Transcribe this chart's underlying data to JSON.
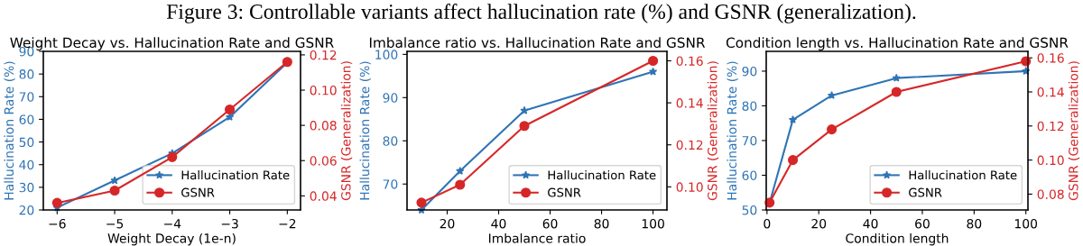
{
  "chart_data": [
    {
      "type": "line",
      "title": "Weight Decay vs. Hallucination Rate and GSNR",
      "annotations": [
        "Figure 3: Controllable variants affect hallucination rate (%) and GSNR (generalization)."
      ],
      "xlabel": "Weight Decay (1e-n)",
      "ylabel": "Hallucination Rate (%)",
      "y2label": "GSNR (Generalization)",
      "x": [
        -6,
        -5,
        -4,
        -3,
        -2
      ],
      "xlim": [
        -6.24,
        -1.77
      ],
      "xticks": [
        {
          "value": -6,
          "label": "−6"
        },
        {
          "value": -5,
          "label": "−5"
        },
        {
          "value": -4,
          "label": "−4"
        },
        {
          "value": -3,
          "label": "−3"
        },
        {
          "value": -2,
          "label": "−2"
        }
      ],
      "ylim": [
        20,
        90
      ],
      "yticks": [
        20,
        30,
        40,
        50,
        60,
        70,
        80,
        90
      ],
      "y2lim": [
        0.032,
        0.122
      ],
      "y2ticks": [
        {
          "value": 0.04,
          "label": "0.04"
        },
        {
          "value": 0.06,
          "label": "0.06"
        },
        {
          "value": 0.08,
          "label": "0.08"
        },
        {
          "value": 0.1,
          "label": "0.10"
        },
        {
          "value": 0.12,
          "label": "0.12"
        }
      ],
      "legend": "lower right",
      "grid": false,
      "series": [
        {
          "name": "Hallucination Rate",
          "color": "#2f74b5",
          "marker": "star",
          "values": [
            21,
            33,
            45,
            61,
            85
          ]
        },
        {
          "name": "GSNR",
          "color": "#d62728",
          "marker": "circle",
          "axis": "y2",
          "values": [
            0.036,
            0.043,
            0.062,
            0.089,
            0.116
          ]
        }
      ]
    },
    {
      "type": "line",
      "title": "Imbalance ratio vs. Hallucination Rate and GSNR",
      "xlabel": "Imbalance ratio",
      "ylabel": "Hallucination Rate (%)",
      "y2label": "GSNR (Generalization)",
      "x": [
        10,
        25,
        50,
        100
      ],
      "xlim": [
        4.4,
        105.4
      ],
      "xticks": [
        20,
        40,
        60,
        80,
        100
      ],
      "ylim": [
        64,
        100.7
      ],
      "yticks": [
        70,
        80,
        90,
        100
      ],
      "y2lim": [
        0.089,
        0.1645
      ],
      "y2ticks": [
        {
          "value": 0.1,
          "label": "0.10"
        },
        {
          "value": 0.12,
          "label": "0.12"
        },
        {
          "value": 0.14,
          "label": "0.14"
        },
        {
          "value": 0.16,
          "label": "0.16"
        }
      ],
      "legend": "lower right",
      "grid": false,
      "series": [
        {
          "name": "Hallucination Rate",
          "color": "#2f74b5",
          "marker": "star",
          "values": [
            64,
            73,
            87,
            96
          ]
        },
        {
          "name": "GSNR",
          "color": "#d62728",
          "marker": "circle",
          "axis": "y2",
          "values": [
            0.0925,
            0.101,
            0.129,
            0.16
          ]
        }
      ]
    },
    {
      "type": "line",
      "title": "Condition length vs. Hallucination Rate and GSNR",
      "xlabel": "Condition length",
      "ylabel": "Hallucination Rate (%)",
      "y2label": "GSNR (Generalization)",
      "x": [
        1,
        10,
        25,
        50,
        100
      ],
      "xlim": [
        -0.3,
        100.8
      ],
      "xticks": [
        0,
        20,
        40,
        60,
        80,
        100
      ],
      "ylim": [
        50,
        95.7
      ],
      "yticks": [
        50,
        60,
        70,
        80,
        90
      ],
      "y2lim": [
        0.0707,
        0.1638
      ],
      "y2ticks": [
        {
          "value": 0.08,
          "label": "0.08"
        },
        {
          "value": 0.1,
          "label": "0.10"
        },
        {
          "value": 0.12,
          "label": "0.12"
        },
        {
          "value": 0.14,
          "label": "0.14"
        },
        {
          "value": 0.16,
          "label": "0.16"
        }
      ],
      "legend": "lower right",
      "grid": false,
      "series": [
        {
          "name": "Hallucination Rate",
          "color": "#2f74b5",
          "marker": "star",
          "values": [
            52,
            76,
            83,
            88,
            90
          ]
        },
        {
          "name": "GSNR",
          "color": "#d62728",
          "marker": "circle",
          "axis": "y2",
          "values": [
            0.075,
            0.1,
            0.118,
            0.14,
            0.158
          ]
        }
      ]
    }
  ]
}
